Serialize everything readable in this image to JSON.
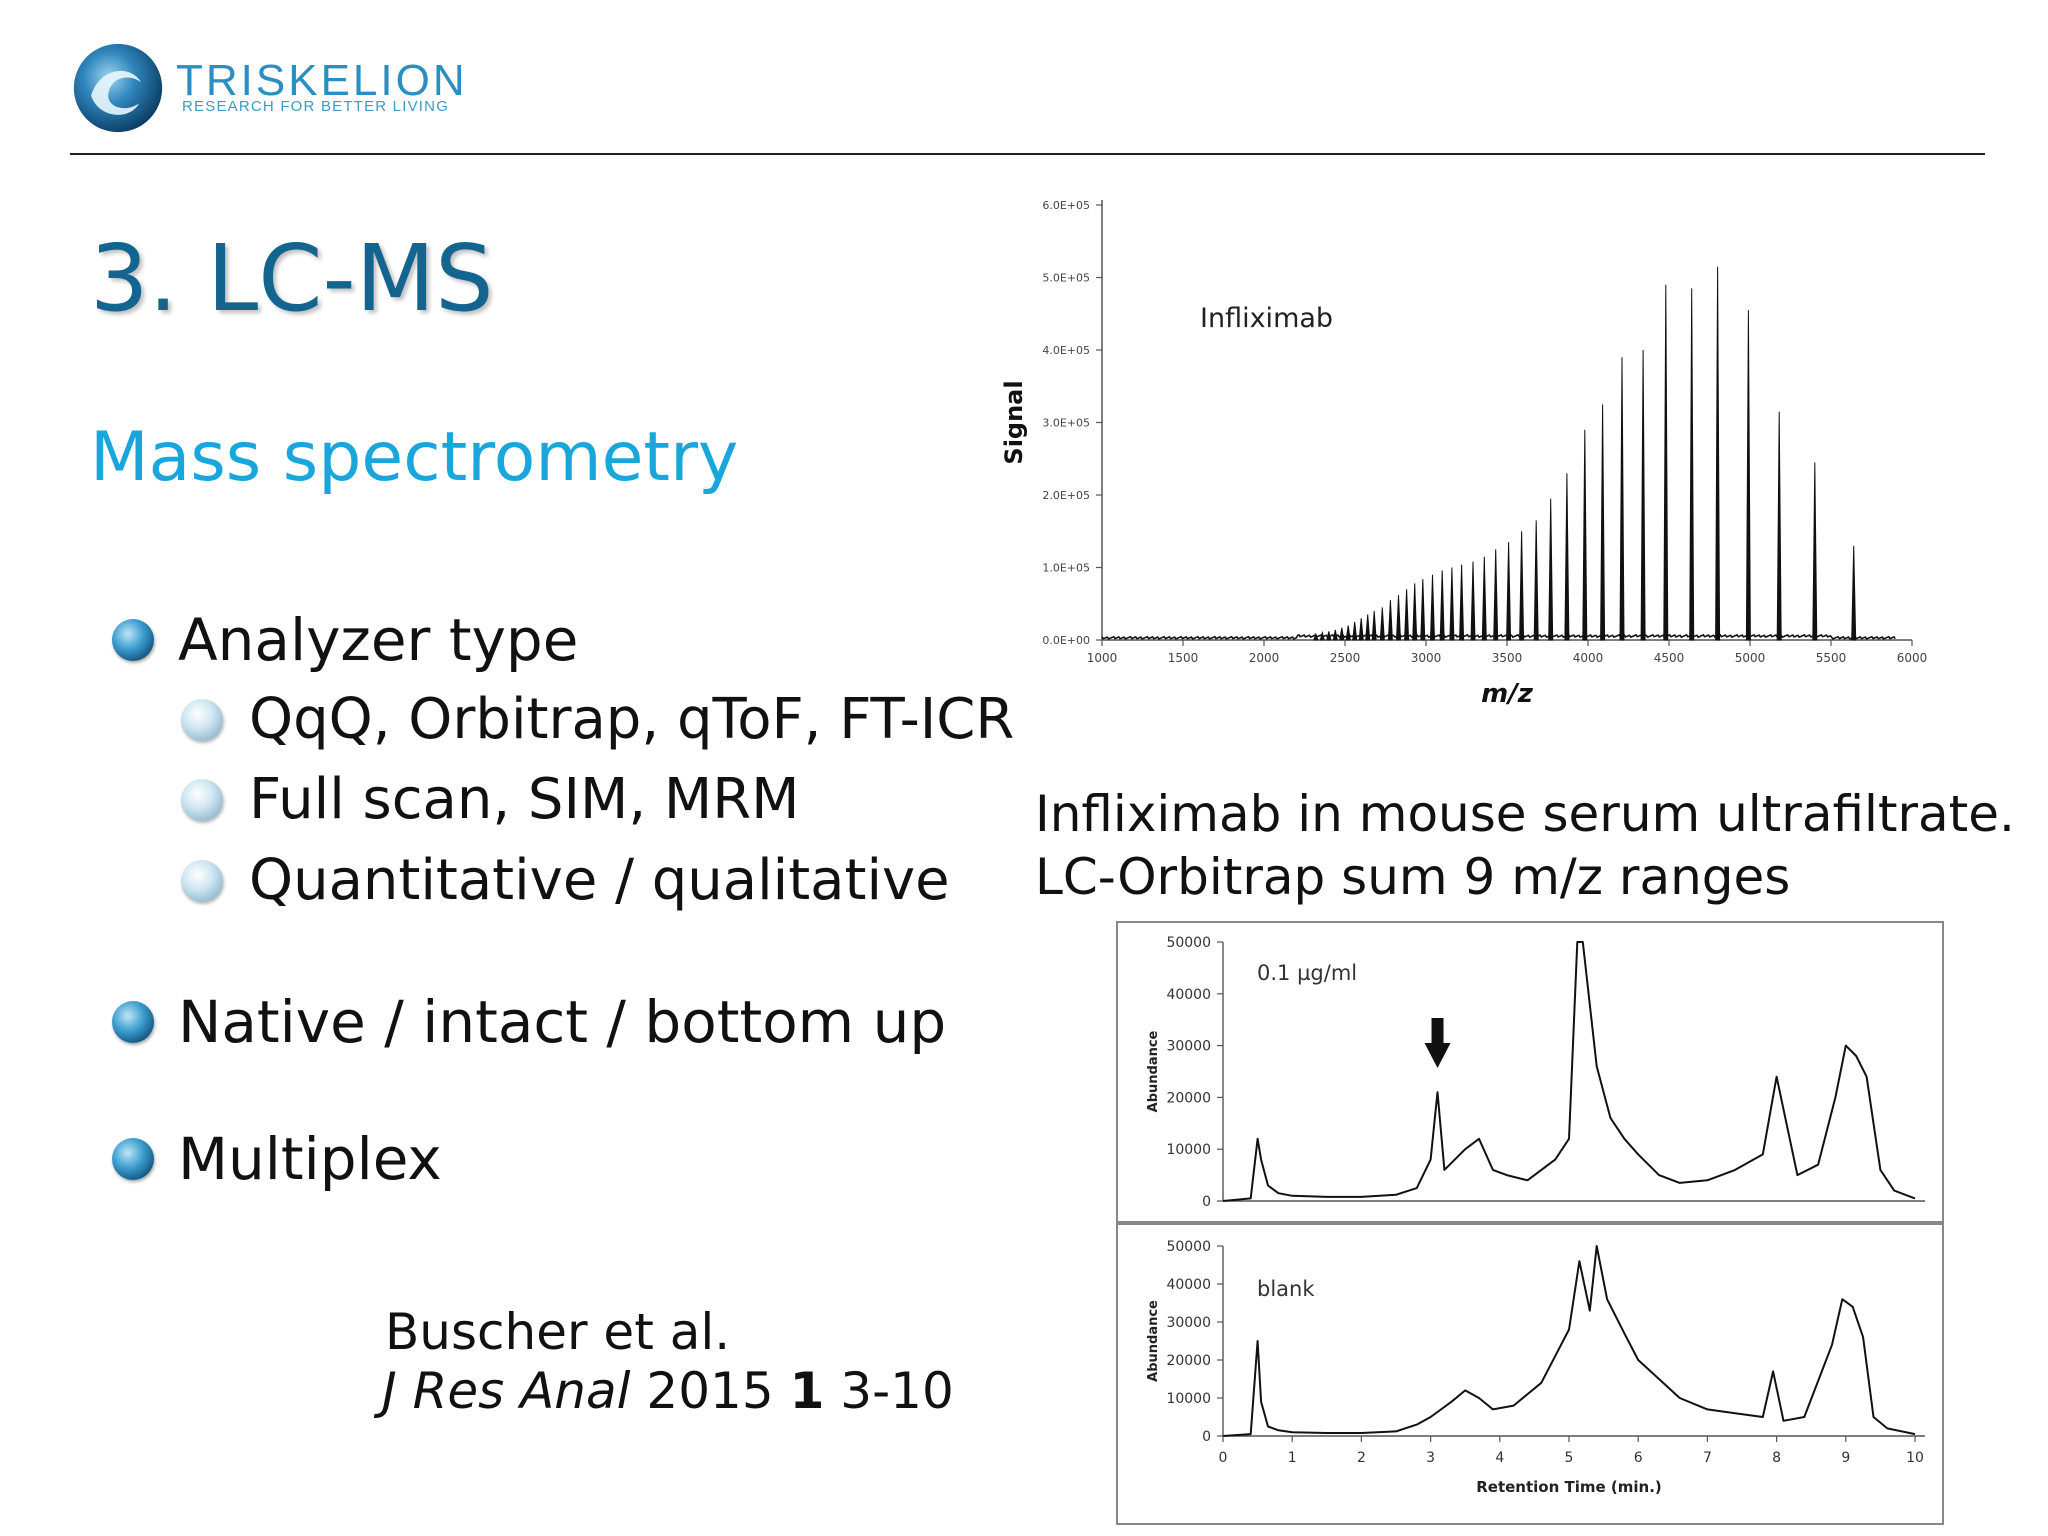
{
  "header": {
    "brand_name": "TRISKELION",
    "tagline": "RESEARCH FOR BETTER LIVING"
  },
  "slide": {
    "title": "3. LC-MS",
    "subtitle": "Mass spectrometry"
  },
  "bullets": [
    {
      "level": 1,
      "text": "Analyzer type"
    },
    {
      "level": 2,
      "text": "QqQ, Orbitrap, qToF, FT-ICR"
    },
    {
      "level": 2,
      "text": "Full scan, SIM, MRM"
    },
    {
      "level": 2,
      "text": "Quantitative / qualitative"
    },
    {
      "level": 1,
      "text": "Native / intact / bottom up"
    },
    {
      "level": 1,
      "text": "Multiplex"
    }
  ],
  "reference": {
    "authors": "Buscher et al.",
    "journal": "J Res Anal",
    "year": "2015",
    "volume": "1",
    "pages": "3-10"
  },
  "caption": {
    "line1": "Infliximab in mouse serum ultrafiltrate.",
    "line2": "LC-Orbitrap sum 9 m/z ranges"
  },
  "colors": {
    "title": "#13658f",
    "subtitle": "#19a6dc",
    "brand": "#2a8fc0"
  },
  "icons": {
    "logo": "triskelion-swirl-logo",
    "bullet_level1": "blue-sphere-bullet-icon",
    "bullet_level2": "light-sphere-bullet-icon",
    "peak_marker": "down-arrow-icon"
  },
  "chart_data": [
    {
      "type": "line",
      "subtype": "stick-spectrum",
      "annotation": "Infliximab",
      "xlabel": "m/z",
      "ylabel": "Signal",
      "xlim": [
        1000,
        6000
      ],
      "ylim": [
        0,
        600000
      ],
      "x_ticks": [
        "1000",
        "1500",
        "2000",
        "2500",
        "3000",
        "3500",
        "4000",
        "4500",
        "5000",
        "5500",
        "6000"
      ],
      "y_ticks": [
        "0.0E+00",
        "1.0E+05",
        "2.0E+05",
        "3.0E+05",
        "4.0E+05",
        "5.0E+05",
        "6.0E+05"
      ],
      "grid": false,
      "peaks": {
        "x": [
          2320,
          2360,
          2400,
          2440,
          2480,
          2520,
          2560,
          2600,
          2640,
          2680,
          2730,
          2780,
          2830,
          2880,
          2930,
          2980,
          3040,
          3100,
          3160,
          3220,
          3290,
          3360,
          3430,
          3510,
          3590,
          3680,
          3770,
          3870,
          3980,
          4090,
          4210,
          4340,
          4480,
          4640,
          4800,
          4990,
          5180,
          5400,
          5640
        ],
        "y": [
          8000,
          10000,
          12000,
          14000,
          17000,
          20000,
          25000,
          30000,
          35000,
          40000,
          45000,
          55000,
          62000,
          70000,
          78000,
          84000,
          90000,
          96000,
          100000,
          104000,
          108000,
          115000,
          125000,
          135000,
          150000,
          165000,
          195000,
          230000,
          290000,
          325000,
          390000,
          400000,
          490000,
          485000,
          515000,
          455000,
          315000,
          245000,
          130000
        ]
      }
    },
    {
      "type": "line",
      "panels": [
        {
          "annotation": "0.1 µg/ml",
          "ylabel": "Abundance",
          "ylim": [
            0,
            50000
          ],
          "y_ticks": [
            "50000",
            "40000",
            "30000",
            "20000",
            "10000",
            "0"
          ],
          "x": [
            0,
            0.4,
            0.5,
            0.55,
            0.65,
            0.8,
            1.0,
            1.5,
            2.0,
            2.5,
            2.8,
            3.0,
            3.1,
            3.2,
            3.35,
            3.5,
            3.7,
            3.9,
            4.1,
            4.4,
            4.8,
            5.0,
            5.12,
            5.2,
            5.4,
            5.6,
            5.8,
            6.0,
            6.3,
            6.6,
            7.0,
            7.4,
            7.8,
            8.0,
            8.3,
            8.6,
            8.85,
            9.0,
            9.15,
            9.3,
            9.5,
            9.7,
            10.0
          ],
          "y": [
            0,
            500,
            12000,
            8000,
            3000,
            1500,
            1000,
            800,
            800,
            1200,
            2500,
            8000,
            21000,
            6000,
            8000,
            10000,
            12000,
            6000,
            5000,
            4000,
            8000,
            12000,
            50000,
            50000,
            26000,
            16000,
            12000,
            9000,
            5000,
            3500,
            4000,
            6000,
            9000,
            24000,
            5000,
            7000,
            20000,
            30000,
            28000,
            24000,
            6000,
            2000,
            500
          ]
        },
        {
          "annotation": "blank",
          "ylabel": "Abundance",
          "ylim": [
            0,
            50000
          ],
          "y_ticks": [
            "50000",
            "40000",
            "30000",
            "20000",
            "10000",
            "0"
          ],
          "x": [
            0,
            0.4,
            0.5,
            0.55,
            0.65,
            0.8,
            1.0,
            1.5,
            2.0,
            2.5,
            2.8,
            3.0,
            3.3,
            3.5,
            3.7,
            3.9,
            4.2,
            4.6,
            5.0,
            5.15,
            5.3,
            5.4,
            5.55,
            5.8,
            6.0,
            6.3,
            6.6,
            7.0,
            7.4,
            7.8,
            7.95,
            8.1,
            8.4,
            8.8,
            8.95,
            9.1,
            9.25,
            9.4,
            9.6,
            10.0
          ],
          "y": [
            0,
            500,
            25000,
            9000,
            2500,
            1500,
            1000,
            800,
            800,
            1200,
            3000,
            5000,
            9000,
            12000,
            10000,
            7000,
            8000,
            14000,
            28000,
            46000,
            33000,
            50000,
            36000,
            27000,
            20000,
            15000,
            10000,
            7000,
            6000,
            5000,
            17000,
            4000,
            5000,
            24000,
            36000,
            34000,
            26000,
            5000,
            2000,
            500
          ]
        }
      ],
      "xlabel": "Retention Time (min.)",
      "xlim": [
        0,
        10
      ],
      "x_ticks": [
        "0",
        "1",
        "2",
        "3",
        "4",
        "5",
        "6",
        "7",
        "8",
        "9",
        "10"
      ],
      "marker_x": 3.1
    }
  ]
}
